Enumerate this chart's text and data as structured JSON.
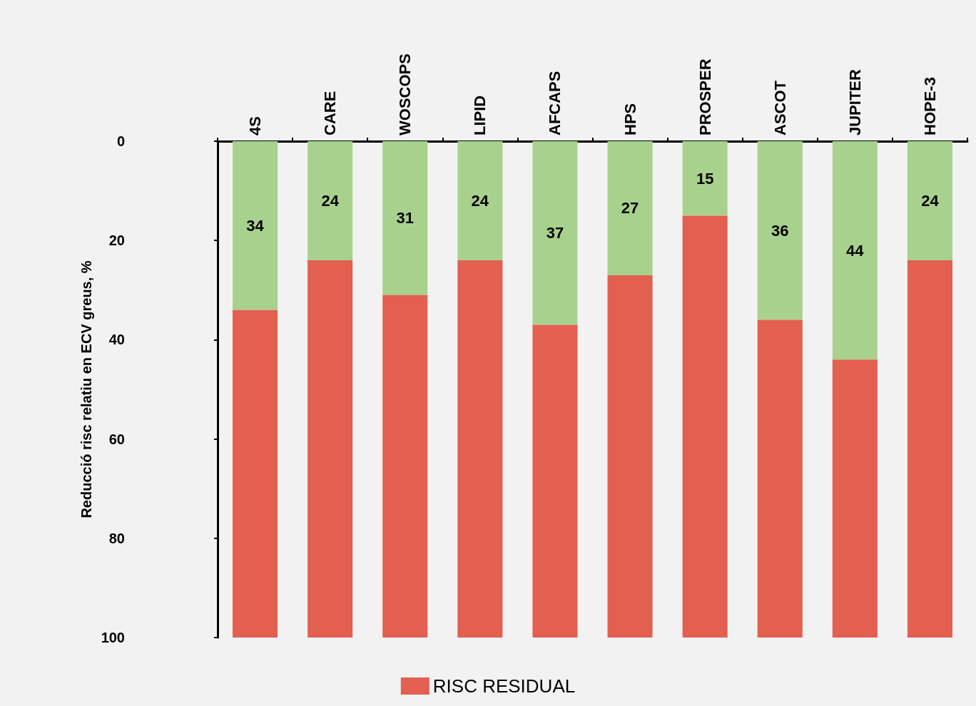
{
  "chart_data": {
    "type": "bar",
    "stacked": true,
    "ylabel": "Reducció risc relatiu en ECV greus, %",
    "categories": [
      "4S",
      "CARE",
      "WOSCOPS",
      "LIPID",
      "AFCAPS",
      "HPS",
      "PROSPER",
      "ASCOT",
      "JUPITER",
      "HOPE-3"
    ],
    "series": [
      {
        "color": "#a9d18e",
        "values": [
          34,
          24,
          31,
          24,
          37,
          27,
          15,
          36,
          44,
          24
        ],
        "value_labels": [
          "34",
          "24",
          "31",
          "24",
          "37",
          "27",
          "15",
          "36",
          "44",
          "24"
        ]
      },
      {
        "name": "RISC RESIDUAL",
        "color": "#e35f4f",
        "values": [
          66,
          76,
          69,
          76,
          63,
          73,
          85,
          64,
          56,
          76
        ]
      }
    ],
    "ylim": [
      100,
      0
    ],
    "yticks": [
      0,
      20,
      40,
      60,
      80,
      100
    ],
    "grid": false,
    "legend": "bottom"
  }
}
